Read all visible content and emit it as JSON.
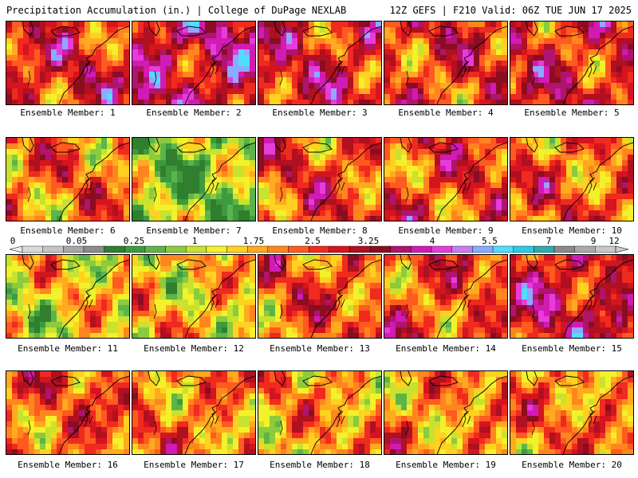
{
  "header": {
    "title_left": "Precipitation Accumulation (in.) | College of DuPage NEXLAB",
    "title_right": "12Z GEFS | F210 Valid: 06Z TUE JUN 17 2025"
  },
  "caption_prefix": "Ensemble Member: ",
  "members": [
    {
      "number": "1",
      "wetness": 0.65
    },
    {
      "number": "2",
      "wetness": 0.78
    },
    {
      "number": "3",
      "wetness": 0.68
    },
    {
      "number": "4",
      "wetness": 0.62
    },
    {
      "number": "5",
      "wetness": 0.66
    },
    {
      "number": "6",
      "wetness": 0.5
    },
    {
      "number": "7",
      "wetness": 0.2
    },
    {
      "number": "8",
      "wetness": 0.58
    },
    {
      "number": "9",
      "wetness": 0.6
    },
    {
      "number": "10",
      "wetness": 0.55
    },
    {
      "number": "11",
      "wetness": 0.35
    },
    {
      "number": "12",
      "wetness": 0.4
    },
    {
      "number": "13",
      "wetness": 0.55
    },
    {
      "number": "14",
      "wetness": 0.58
    },
    {
      "number": "15",
      "wetness": 0.72
    },
    {
      "number": "16",
      "wetness": 0.55
    },
    {
      "number": "17",
      "wetness": 0.5
    },
    {
      "number": "18",
      "wetness": 0.45
    },
    {
      "number": "19",
      "wetness": 0.48
    },
    {
      "number": "20",
      "wetness": 0.5
    }
  ],
  "colorbar": {
    "labels": [
      "0",
      "0.05",
      "0.25",
      "1",
      "1.75",
      "2.5",
      "3.25",
      "4",
      "5.5",
      "7",
      "9",
      "12"
    ],
    "colors": [
      "#d9d9d9",
      "#c4c4c4",
      "#a8a8a8",
      "#8c8c8c",
      "#2f7f2f",
      "#3e9a3e",
      "#5cb54a",
      "#8bcb3d",
      "#c8e22e",
      "#f2f22a",
      "#ffd21f",
      "#ffaa1f",
      "#ff861f",
      "#ff5a1f",
      "#f02a1f",
      "#d4141f",
      "#b0101f",
      "#8a0d22",
      "#b0146e",
      "#d21ab4",
      "#e63cdc",
      "#c87ef0",
      "#8caaff",
      "#50ddff",
      "#30c8e6",
      "#30aaaa",
      "#8a8a8a",
      "#aaaaaa",
      "#c8c8c8"
    ]
  },
  "precip_palette": [
    "#2f7f2f",
    "#3e9a3e",
    "#5cb54a",
    "#8bcb3d",
    "#c8e22e",
    "#f2f22a",
    "#ffd21f",
    "#ffaa1f",
    "#ff861f",
    "#ff5a1f",
    "#f02a1f",
    "#d4141f",
    "#b0101f",
    "#8a0d22",
    "#b0146e",
    "#d21ab4",
    "#e63cdc",
    "#8caaff",
    "#50ddff"
  ]
}
